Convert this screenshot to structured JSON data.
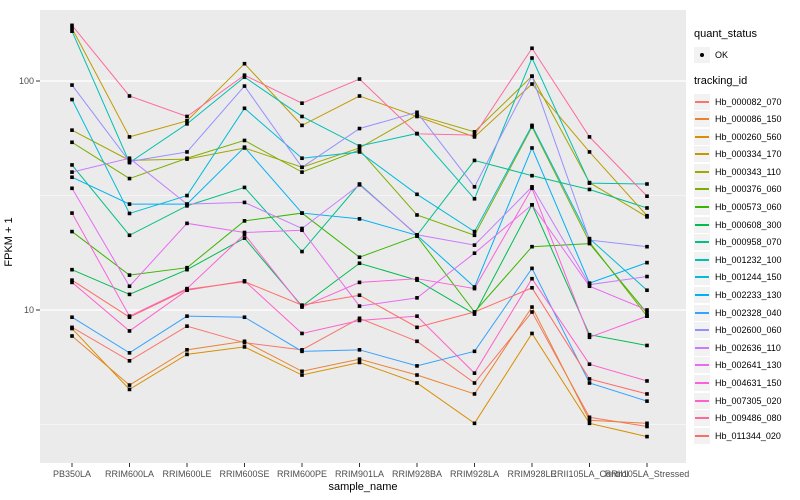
{
  "chart_data": {
    "type": "line",
    "title": "",
    "x_axis": {
      "label": "sample_name",
      "categories": [
        "PB350LA",
        "RRIM600LA",
        "RRIM600LE",
        "RRIM600SE",
        "RRIM600PE",
        "RRIM901LA",
        "RRIM928BA",
        "RRIM928LA",
        "RRIM928LE",
        "RRII105LA_Control",
        "RRII105LA_Stressed"
      ]
    },
    "y_axis": {
      "label": "FPKM + 1",
      "scale": "log10",
      "tick_labels": [
        "100",
        "10"
      ],
      "tick_values": [
        100,
        10
      ],
      "range": [
        2.1,
        210
      ],
      "grid": true
    },
    "legend": {
      "quant_status_title": "quant_status",
      "quant_status_items": [
        {
          "label": "OK",
          "shape": "point"
        }
      ],
      "tracking_id_title": "tracking_id",
      "position": "right"
    },
    "colors": {
      "panel_background": "#EBEBEB",
      "gridline": "#FFFFFF",
      "point": "#000000",
      "axis_text": "#4D4D4D",
      "legend_key_background": "#F2F2F2"
    },
    "series": [
      {
        "id": "Hb_000082_070",
        "color": "#F8766D",
        "values": [
          8.4,
          6.0,
          8.5,
          7.2,
          6.7,
          9.2,
          7.3,
          4.8,
          9.8,
          3.4,
          3.1
        ]
      },
      {
        "id": "Hb_000086_150",
        "color": "#EA8331",
        "values": [
          7.7,
          4.7,
          6.7,
          7.3,
          5.4,
          6.1,
          5.2,
          4.3,
          10.3,
          3.3,
          3.2
        ]
      },
      {
        "id": "Hb_000260_560",
        "color": "#D89000",
        "values": [
          8.3,
          4.5,
          6.4,
          6.9,
          5.2,
          5.9,
          4.8,
          3.2,
          7.9,
          3.2,
          2.8
        ]
      },
      {
        "id": "Hb_000334_170",
        "color": "#C09B00",
        "values": [
          170,
          57,
          67,
          119,
          64,
          86,
          70,
          57,
          97,
          49,
          25.8
        ]
      },
      {
        "id": "Hb_000343_110",
        "color": "#A3A500",
        "values": [
          61,
          45,
          45.6,
          51,
          42,
          51,
          71,
          60,
          105,
          36,
          25.5
        ]
      },
      {
        "id": "Hb_000376_060",
        "color": "#7CAE00",
        "values": [
          54,
          37.5,
          46,
          55,
          40,
          50,
          26,
          21.2,
          63,
          19.8,
          9.4
        ]
      },
      {
        "id": "Hb_000573_060",
        "color": "#39B600",
        "values": [
          22,
          14.2,
          15.3,
          24.5,
          26.5,
          17,
          21,
          9.8,
          18.9,
          19.5,
          9.7
        ]
      },
      {
        "id": "Hb_000608_300",
        "color": "#00BB4E",
        "values": [
          15,
          11.7,
          15.0,
          20.6,
          10.4,
          16,
          13.5,
          9.6,
          28.8,
          7.8,
          7.0
        ]
      },
      {
        "id": "Hb_000958_070",
        "color": "#00C087",
        "values": [
          43,
          21.2,
          28.5,
          34.3,
          18.0,
          35.5,
          21.2,
          45,
          38.6,
          33.6,
          27.9
        ]
      },
      {
        "id": "Hb_001232_100",
        "color": "#00C0AF",
        "values": [
          165,
          44,
          65,
          104,
          70,
          52,
          59,
          30.6,
          126,
          35.8,
          35.5
        ]
      },
      {
        "id": "Hb_001244_150",
        "color": "#00BCD8",
        "values": [
          83,
          26.4,
          31.6,
          76,
          46,
          49,
          32,
          22,
          64,
          20.5,
          12.2
        ]
      },
      {
        "id": "Hb_002233_130",
        "color": "#00B0F6",
        "values": [
          38,
          29,
          29,
          51.4,
          26.5,
          25,
          21.2,
          12.6,
          51,
          13.1,
          16.1
        ]
      },
      {
        "id": "Hb_002328_040",
        "color": "#35A2FF",
        "values": [
          9.3,
          6.5,
          9.4,
          9.3,
          6.6,
          6.7,
          5.7,
          6.6,
          15.2,
          4.8,
          4.0
        ]
      },
      {
        "id": "Hb_002600_060",
        "color": "#9590FF",
        "values": [
          96,
          44.5,
          49,
          95,
          42,
          62,
          73,
          34.5,
          105,
          20.2,
          18.9
        ]
      },
      {
        "id": "Hb_002636_110",
        "color": "#C77CFF",
        "values": [
          40,
          46,
          29,
          29.5,
          22.7,
          35.2,
          21.3,
          19.2,
          34.5,
          12.9,
          14.0
        ]
      },
      {
        "id": "Hb_002641_130",
        "color": "#E76BF3",
        "values": [
          34,
          12.7,
          23.9,
          21.8,
          22.3,
          10.4,
          11.3,
          17.7,
          28.8,
          12.7,
          10.0
        ]
      },
      {
        "id": "Hb_004631_150",
        "color": "#FA62DB",
        "values": [
          26.5,
          9.4,
          12.4,
          21.4,
          10.3,
          13.2,
          13.7,
          12.4,
          34,
          7.6,
          9.4
        ]
      },
      {
        "id": "Hb_007305_020",
        "color": "#FF61C9",
        "values": [
          13.2,
          8.1,
          12.2,
          13.4,
          7.9,
          9.0,
          9.4,
          5.3,
          13.7,
          5.8,
          4.9
        ]
      },
      {
        "id": "Hb_009486_080",
        "color": "#FF689E",
        "values": [
          175,
          86,
          70,
          106,
          80,
          102,
          58.8,
          58,
          139,
          57,
          31.4
        ]
      },
      {
        "id": "Hb_011344_020",
        "color": "#FF6C67",
        "values": [
          13.5,
          9.3,
          12.3,
          13.3,
          10.5,
          11.6,
          8.4,
          9.8,
          12.5,
          5.0,
          4.3
        ]
      }
    ]
  }
}
